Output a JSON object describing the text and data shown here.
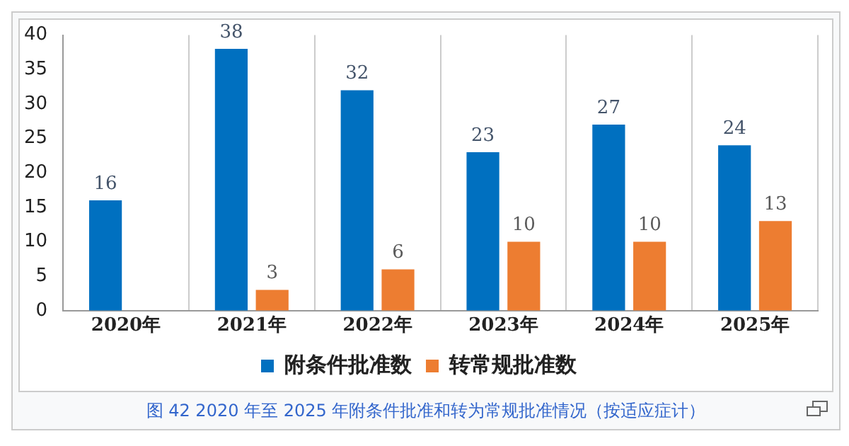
{
  "chart_data": {
    "type": "bar",
    "categories": [
      "2020年",
      "2021年",
      "2022年",
      "2023年",
      "2024年",
      "2025年"
    ],
    "series": [
      {
        "name": "附条件批准数",
        "color": "#0070c0",
        "values": [
          16,
          38,
          32,
          23,
          27,
          24
        ]
      },
      {
        "name": "转常规批准数",
        "color": "#ed7d31",
        "values": [
          null,
          3,
          6,
          10,
          10,
          13
        ]
      }
    ],
    "ylim": [
      0,
      40
    ],
    "yticks": [
      0,
      5,
      10,
      15,
      20,
      25,
      30,
      35,
      40
    ],
    "grid": "x",
    "legend": "bottom",
    "data_labels": true,
    "annotations": [
      "图 42 2020 年至 2025 年附条件批准和转为常规批准情况（按适应症计）"
    ]
  }
}
